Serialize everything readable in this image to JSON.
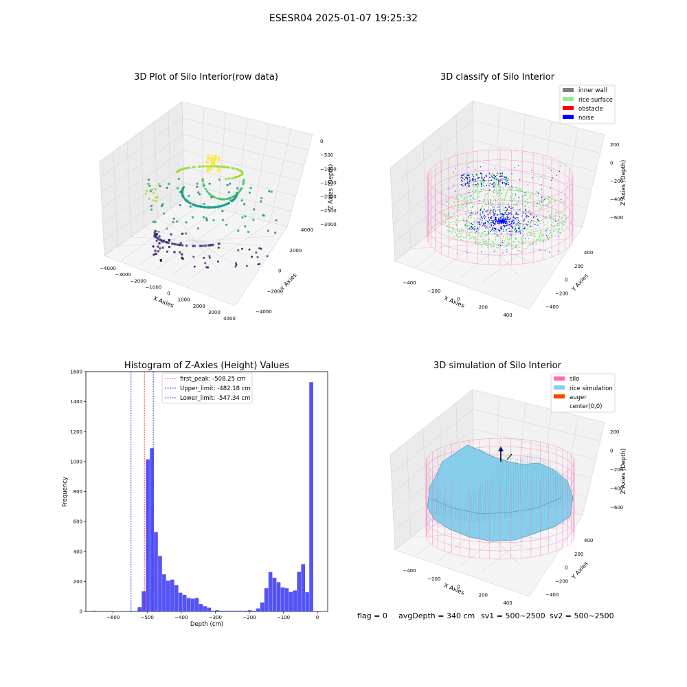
{
  "suptitle": "ESESR04 2025-01-07 19:25:32",
  "footer": {
    "flag": "flag = 0",
    "avg_depth": "avgDepth = 340 cm",
    "sv1": "sv1 = 500~2500",
    "sv2": "sv2 = 500~2500"
  },
  "chart_data": [
    {
      "id": "raw",
      "type": "scatter",
      "title": "3D Plot of Silo Interior(row data)",
      "xlabel": "X Axies",
      "ylabel": "Y Axies",
      "zlabel": "Z Axies (Depth)",
      "x_ticks": [
        "−4000",
        "−3000",
        "−2000",
        "−1000",
        "0",
        "1000",
        "2000",
        "3000",
        "4000"
      ],
      "y_ticks": [
        "−4000",
        "−2000",
        "0",
        "2000",
        "4000"
      ],
      "z_ticks": [
        "0",
        "−500",
        "−1000",
        "−1500",
        "−2000",
        "−2500",
        "−3000"
      ],
      "colormap": "viridis",
      "xlim": [
        -4000,
        4000
      ],
      "ylim": [
        -4000,
        4000
      ],
      "zlim": [
        -3500,
        0
      ]
    },
    {
      "id": "classify",
      "type": "scatter",
      "title": "3D classify of Silo Interior",
      "xlabel": "X Axies",
      "ylabel": "Y Axies",
      "zlabel": "Z Axies (Depth)",
      "x_ticks": [
        "−400",
        "−200",
        "0",
        "200",
        "400"
      ],
      "y_ticks": [
        "−400",
        "−200",
        "0",
        "200",
        "400"
      ],
      "z_ticks": [
        "200",
        "0",
        "−200",
        "−400",
        "−600"
      ],
      "legend_position": "top-right",
      "legend": [
        {
          "label": "inner wall",
          "color": "#808080"
        },
        {
          "label": "rice surface",
          "color": "#90ee90"
        },
        {
          "label": "obstacle",
          "color": "#ff0000"
        },
        {
          "label": "noise",
          "color": "#0000ff"
        }
      ]
    },
    {
      "id": "histogram",
      "type": "bar",
      "title": "Histogram of Z-Axies (Height) Values",
      "xlabel": "Depth (cm)",
      "ylabel": "Frequency",
      "xlim": [
        -680,
        30
      ],
      "ylim": [
        0,
        1600
      ],
      "x_ticks": [
        "−600",
        "−500",
        "−400",
        "−300",
        "−200",
        "−100",
        "0"
      ],
      "x_tick_values": [
        -600,
        -500,
        -400,
        -300,
        -200,
        -100,
        0
      ],
      "y_ticks": [
        "0",
        "200",
        "400",
        "600",
        "800",
        "1000",
        "1200",
        "1400",
        "1600"
      ],
      "y_tick_values": [
        0,
        200,
        400,
        600,
        800,
        1000,
        1200,
        1400,
        1600
      ],
      "color": "#4b4bf5",
      "bins": {
        "start": -660,
        "width": 12,
        "counts": [
          5,
          0,
          0,
          0,
          0,
          0,
          0,
          0,
          0,
          0,
          3,
          28,
          135,
          1015,
          1090,
          530,
          370,
          248,
          205,
          212,
          175,
          125,
          110,
          90,
          85,
          90,
          50,
          35,
          25,
          5,
          8,
          5,
          5,
          5,
          5,
          5,
          5,
          5,
          8,
          5,
          20,
          60,
          155,
          263,
          225,
          195,
          160,
          155,
          130,
          140,
          265,
          315,
          128,
          1530
        ]
      },
      "reference_lines": [
        {
          "label": "first_peak: -508.25 cm",
          "value": -508.25,
          "color": "#ff0000"
        },
        {
          "label": "Upper_limit: -482.18 cm",
          "value": -482.18,
          "color": "#0000ff"
        },
        {
          "label": "Lower_limit: -547.34 cm",
          "value": -547.34,
          "color": "#0000ff"
        }
      ],
      "legend_position": "top-center"
    },
    {
      "id": "simulation",
      "type": "area",
      "title": "3D simulation of Silo Interior",
      "xlabel": "X Axies",
      "ylabel": "Y Axies",
      "zlabel": "Z Axies (Depth)",
      "x_ticks": [
        "−400",
        "−200",
        "0",
        "200",
        "400"
      ],
      "y_ticks": [
        "−400",
        "−200",
        "0",
        "200",
        "400"
      ],
      "z_ticks": [
        "200",
        "0",
        "−200",
        "−400",
        "−600"
      ],
      "legend_position": "top-right",
      "legend": [
        {
          "label": "silo",
          "color": "#ff69b4"
        },
        {
          "label": "rice simulation",
          "color": "#87ceeb"
        },
        {
          "label": "auger",
          "color": "#ff4500"
        },
        {
          "label": "center(0,0)",
          "color": ""
        }
      ]
    }
  ]
}
